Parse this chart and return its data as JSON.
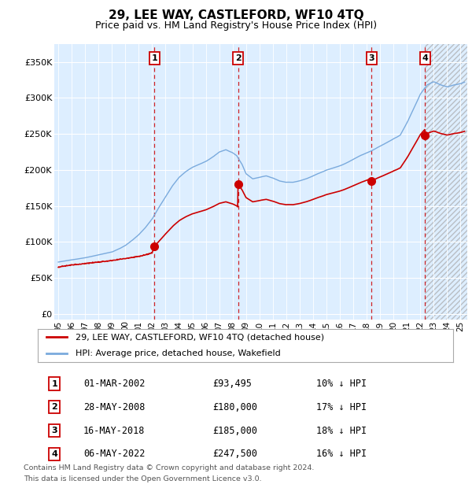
{
  "title": "29, LEE WAY, CASTLEFORD, WF10 4TQ",
  "subtitle": "Price paid vs. HM Land Registry's House Price Index (HPI)",
  "x_start": 1994.7,
  "x_end": 2025.5,
  "y_ticks": [
    0,
    50000,
    100000,
    150000,
    200000,
    250000,
    300000,
    350000
  ],
  "y_labels": [
    "£0",
    "£50K",
    "£100K",
    "£150K",
    "£200K",
    "£250K",
    "£300K",
    "£350K"
  ],
  "hpi_color": "#7aaadd",
  "sale_color": "#cc0000",
  "background_color": "#ddeeff",
  "hpi_anchors": [
    [
      1995.0,
      72000
    ],
    [
      1995.5,
      73500
    ],
    [
      1996.0,
      75000
    ],
    [
      1996.5,
      76500
    ],
    [
      1997.0,
      78000
    ],
    [
      1997.5,
      80000
    ],
    [
      1998.0,
      82000
    ],
    [
      1998.5,
      84000
    ],
    [
      1999.0,
      86000
    ],
    [
      1999.5,
      90000
    ],
    [
      2000.0,
      95000
    ],
    [
      2000.5,
      102000
    ],
    [
      2001.0,
      110000
    ],
    [
      2001.5,
      120000
    ],
    [
      2002.0,
      132000
    ],
    [
      2002.5,
      148000
    ],
    [
      2003.0,
      163000
    ],
    [
      2003.5,
      178000
    ],
    [
      2004.0,
      190000
    ],
    [
      2004.5,
      198000
    ],
    [
      2005.0,
      204000
    ],
    [
      2005.5,
      208000
    ],
    [
      2006.0,
      212000
    ],
    [
      2006.5,
      218000
    ],
    [
      2007.0,
      225000
    ],
    [
      2007.5,
      228000
    ],
    [
      2008.0,
      224000
    ],
    [
      2008.3,
      220000
    ],
    [
      2008.7,
      208000
    ],
    [
      2009.0,
      195000
    ],
    [
      2009.5,
      188000
    ],
    [
      2010.0,
      190000
    ],
    [
      2010.5,
      192000
    ],
    [
      2011.0,
      189000
    ],
    [
      2011.5,
      185000
    ],
    [
      2012.0,
      183000
    ],
    [
      2012.5,
      183000
    ],
    [
      2013.0,
      185000
    ],
    [
      2013.5,
      188000
    ],
    [
      2014.0,
      192000
    ],
    [
      2014.5,
      196000
    ],
    [
      2015.0,
      200000
    ],
    [
      2015.5,
      203000
    ],
    [
      2016.0,
      206000
    ],
    [
      2016.5,
      210000
    ],
    [
      2017.0,
      215000
    ],
    [
      2017.5,
      220000
    ],
    [
      2018.0,
      224000
    ],
    [
      2018.5,
      228000
    ],
    [
      2019.0,
      233000
    ],
    [
      2019.5,
      238000
    ],
    [
      2020.0,
      243000
    ],
    [
      2020.5,
      248000
    ],
    [
      2021.0,
      265000
    ],
    [
      2021.5,
      285000
    ],
    [
      2022.0,
      305000
    ],
    [
      2022.5,
      318000
    ],
    [
      2023.0,
      322000
    ],
    [
      2023.5,
      318000
    ],
    [
      2024.0,
      315000
    ],
    [
      2024.5,
      318000
    ],
    [
      2025.0,
      320000
    ],
    [
      2025.3,
      322000
    ]
  ],
  "sale_anchors_before_first": [
    [
      1995.0,
      65000
    ],
    [
      1995.5,
      66500
    ],
    [
      1996.0,
      68000
    ],
    [
      1996.5,
      69000
    ],
    [
      1997.0,
      70000
    ],
    [
      1997.5,
      71000
    ],
    [
      1998.0,
      72000
    ],
    [
      1998.5,
      73000
    ],
    [
      1999.0,
      74000
    ],
    [
      1999.5,
      75500
    ],
    [
      2000.0,
      77000
    ],
    [
      2000.5,
      78500
    ],
    [
      2001.0,
      80000
    ],
    [
      2001.5,
      82000
    ],
    [
      2002.0,
      85000
    ],
    [
      2002.16,
      93495
    ]
  ],
  "purchases": [
    {
      "label": "1",
      "date_x": 2002.16,
      "price": 93495
    },
    {
      "label": "2",
      "date_x": 2008.4,
      "price": 180000
    },
    {
      "label": "3",
      "date_x": 2018.37,
      "price": 185000
    },
    {
      "label": "4",
      "date_x": 2022.35,
      "price": 247500
    }
  ],
  "purchase_dates_text": [
    "01-MAR-2002",
    "28-MAY-2008",
    "16-MAY-2018",
    "06-MAY-2022"
  ],
  "purchase_prices_text": [
    "£93,495",
    "£180,000",
    "£185,000",
    "£247,500"
  ],
  "purchase_hpi_text": [
    "10% ↓ HPI",
    "17% ↓ HPI",
    "18% ↓ HPI",
    "16% ↓ HPI"
  ],
  "legend_line1": "29, LEE WAY, CASTLEFORD, WF10 4TQ (detached house)",
  "legend_line2": "HPI: Average price, detached house, Wakefield",
  "footer1": "Contains HM Land Registry data © Crown copyright and database right 2024.",
  "footer2": "This data is licensed under the Open Government Licence v3.0.",
  "xtick_labels": [
    "95",
    "96",
    "97",
    "98",
    "99",
    "00",
    "01",
    "02",
    "03",
    "04",
    "05",
    "06",
    "07",
    "08",
    "09",
    "10",
    "11",
    "12",
    "13",
    "14",
    "15",
    "16",
    "17",
    "18",
    "19",
    "20",
    "21",
    "22",
    "23",
    "24",
    "25"
  ],
  "xtick_values": [
    1995,
    1996,
    1997,
    1998,
    1999,
    2000,
    2001,
    2002,
    2003,
    2004,
    2005,
    2006,
    2007,
    2008,
    2009,
    2010,
    2011,
    2012,
    2013,
    2014,
    2015,
    2016,
    2017,
    2018,
    2019,
    2020,
    2021,
    2022,
    2023,
    2024,
    2025
  ]
}
